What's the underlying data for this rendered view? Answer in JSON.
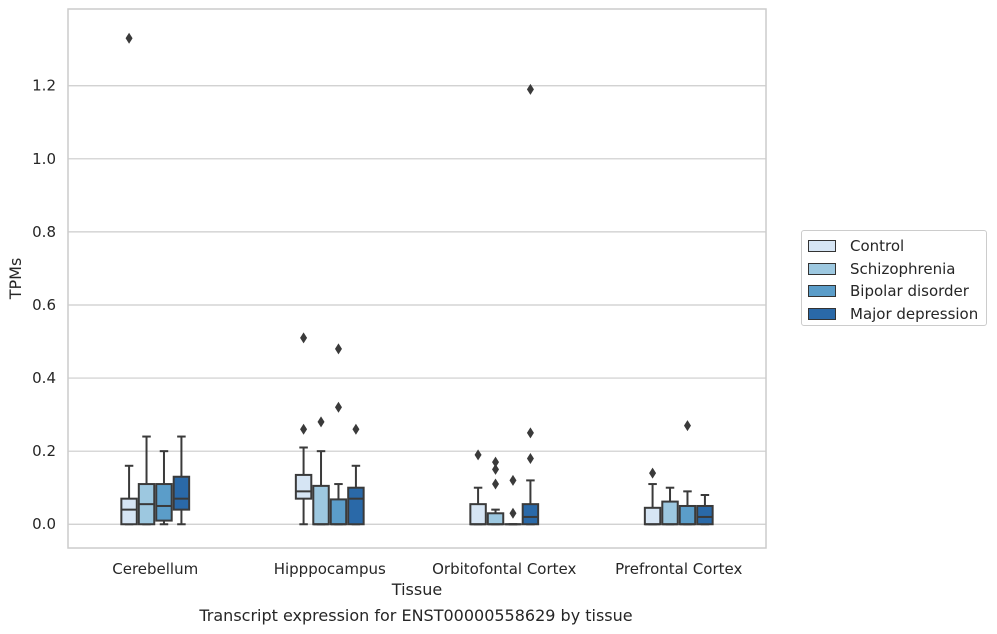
{
  "caption": "Transcript expression for ENST00000558629 by tissue",
  "chart_data": {
    "type": "box",
    "xlabel": "Tissue",
    "ylabel": "TPMs",
    "ylim": [
      -0.065,
      1.41
    ],
    "yticks": [
      "0.0",
      "0.2",
      "0.4",
      "0.6",
      "0.8",
      "1.0",
      "1.2"
    ],
    "grid": "horizontal",
    "legend_position": "right",
    "categories": [
      "Cerebellum",
      "Hipppocampus",
      "Orbitofontal Cortex",
      "Prefrontal Cortex"
    ],
    "series": [
      {
        "name": "Control",
        "color": "#d6e5f4",
        "boxes": [
          {
            "whisker_low": 0.0,
            "q1": 0.0,
            "median": 0.04,
            "q3": 0.07,
            "whisker_high": 0.16,
            "outliers": [
              1.33
            ]
          },
          {
            "whisker_low": 0.0,
            "q1": 0.07,
            "median": 0.09,
            "q3": 0.135,
            "whisker_high": 0.21,
            "outliers": [
              0.26,
              0.51
            ]
          },
          {
            "whisker_low": 0.0,
            "q1": 0.0,
            "median": 0.0,
            "q3": 0.055,
            "whisker_high": 0.1,
            "outliers": [
              0.19
            ]
          },
          {
            "whisker_low": 0.0,
            "q1": 0.0,
            "median": 0.0,
            "q3": 0.045,
            "whisker_high": 0.11,
            "outliers": [
              0.14
            ]
          }
        ]
      },
      {
        "name": "Schizophrenia",
        "color": "#9dc8e0",
        "boxes": [
          {
            "whisker_low": 0.0,
            "q1": 0.0,
            "median": 0.055,
            "q3": 0.11,
            "whisker_high": 0.24,
            "outliers": []
          },
          {
            "whisker_low": 0.0,
            "q1": 0.0,
            "median": 0.0,
            "q3": 0.105,
            "whisker_high": 0.2,
            "outliers": [
              0.28
            ]
          },
          {
            "whisker_low": 0.0,
            "q1": 0.0,
            "median": 0.0,
            "q3": 0.03,
            "whisker_high": 0.04,
            "outliers": [
              0.11,
              0.15,
              0.17
            ]
          },
          {
            "whisker_low": 0.0,
            "q1": 0.0,
            "median": 0.0,
            "q3": 0.062,
            "whisker_high": 0.1,
            "outliers": []
          }
        ]
      },
      {
        "name": "Bipolar disorder",
        "color": "#5b9dc9",
        "boxes": [
          {
            "whisker_low": 0.0,
            "q1": 0.01,
            "median": 0.05,
            "q3": 0.11,
            "whisker_high": 0.2,
            "outliers": []
          },
          {
            "whisker_low": 0.0,
            "q1": 0.0,
            "median": 0.0,
            "q3": 0.068,
            "whisker_high": 0.11,
            "outliers": [
              0.32,
              0.48
            ]
          },
          {
            "whisker_low": 0.0,
            "q1": 0.0,
            "median": 0.0,
            "q3": 0.0,
            "whisker_high": 0.0,
            "outliers": [
              0.03,
              0.12
            ]
          },
          {
            "whisker_low": 0.0,
            "q1": 0.0,
            "median": 0.0,
            "q3": 0.05,
            "whisker_high": 0.09,
            "outliers": [
              0.27
            ]
          }
        ]
      },
      {
        "name": "Major depression",
        "color": "#2a69a8",
        "boxes": [
          {
            "whisker_low": 0.0,
            "q1": 0.04,
            "median": 0.07,
            "q3": 0.13,
            "whisker_high": 0.24,
            "outliers": []
          },
          {
            "whisker_low": 0.0,
            "q1": 0.0,
            "median": 0.07,
            "q3": 0.1,
            "whisker_high": 0.16,
            "outliers": [
              0.26
            ]
          },
          {
            "whisker_low": 0.0,
            "q1": 0.0,
            "median": 0.02,
            "q3": 0.055,
            "whisker_high": 0.12,
            "outliers": [
              0.18,
              0.25,
              1.19
            ]
          },
          {
            "whisker_low": 0.0,
            "q1": 0.0,
            "median": 0.02,
            "q3": 0.05,
            "whisker_high": 0.08,
            "outliers": []
          }
        ]
      }
    ]
  }
}
